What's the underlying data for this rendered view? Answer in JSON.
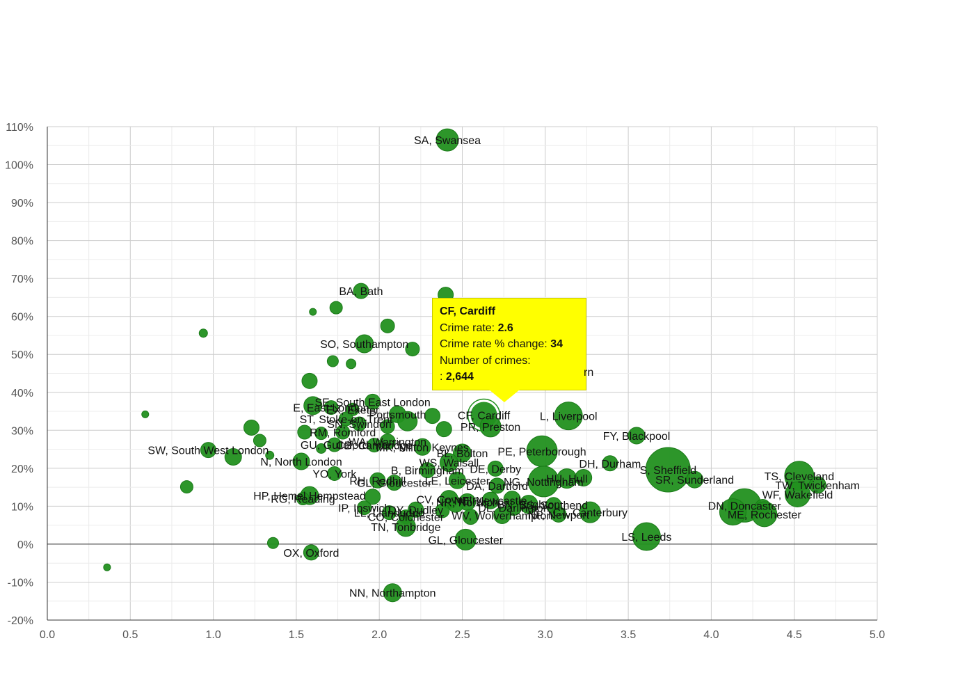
{
  "chart_data": {
    "type": "scatter",
    "subtype": "bubble",
    "title": "",
    "xlabel": "",
    "ylabel": "",
    "xlim": [
      0,
      5
    ],
    "ylim": [
      -20,
      110
    ],
    "x_ticks": [
      "0.0",
      "0.5",
      "1.0",
      "1.5",
      "2.0",
      "2.5",
      "3.0",
      "3.5",
      "4.0",
      "4.5",
      "5.0"
    ],
    "y_ticks": [
      "-20%",
      "-10%",
      "0%",
      "10%",
      "20%",
      "30%",
      "40%",
      "50%",
      "60%",
      "70%",
      "80%",
      "90%",
      "100%",
      "110%"
    ],
    "grid": true,
    "legend": "none",
    "colors": {
      "bubble": "#22901f",
      "bubble_edge": "#1a7a18",
      "tooltip_bg": "#ffff00"
    },
    "points": [
      {
        "x": 2.41,
        "y": 106.5,
        "size": 16,
        "label": "SA, Swansea"
      },
      {
        "x": 1.89,
        "y": 66.7,
        "size": 11,
        "label": "BA, Bath"
      },
      {
        "x": 2.4,
        "y": 65.7,
        "size": 11,
        "label": ""
      },
      {
        "x": 1.6,
        "y": 61.2,
        "size": 5,
        "label": ""
      },
      {
        "x": 1.74,
        "y": 62.3,
        "size": 9,
        "label": ""
      },
      {
        "x": 2.05,
        "y": 57.5,
        "size": 10,
        "label": ""
      },
      {
        "x": 0.94,
        "y": 55.6,
        "size": 6,
        "label": ""
      },
      {
        "x": 1.91,
        "y": 52.8,
        "size": 13,
        "label": "SO, Southampton"
      },
      {
        "x": 2.2,
        "y": 51.4,
        "size": 10,
        "label": ""
      },
      {
        "x": 1.72,
        "y": 48.2,
        "size": 8,
        "label": ""
      },
      {
        "x": 1.83,
        "y": 47.5,
        "size": 7,
        "label": ""
      },
      {
        "x": 1.58,
        "y": 43.0,
        "size": 11,
        "label": ""
      },
      {
        "x": 1.96,
        "y": 37.5,
        "size": 11,
        "label": "SE, South East London"
      },
      {
        "x": 1.6,
        "y": 36.5,
        "size": 13,
        "label": ""
      },
      {
        "x": 1.71,
        "y": 36.0,
        "size": 10,
        "label": "E, East London"
      },
      {
        "x": 1.84,
        "y": 35.5,
        "size": 9,
        "label": "EX, Exeter"
      },
      {
        "x": 2.11,
        "y": 34.2,
        "size": 12,
        "label": "Portsmouth"
      },
      {
        "x": 0.59,
        "y": 34.2,
        "size": 5,
        "label": ""
      },
      {
        "x": 2.32,
        "y": 33.8,
        "size": 11,
        "label": ""
      },
      {
        "x": 1.8,
        "y": 33.0,
        "size": 10,
        "label": "ST, Stoke-on-Trent"
      },
      {
        "x": 2.17,
        "y": 32.4,
        "size": 14,
        "label": ""
      },
      {
        "x": 2.63,
        "y": 34.0,
        "size": 20,
        "label": "CF, Cardiff",
        "highlight": true
      },
      {
        "x": 3.14,
        "y": 33.8,
        "size": 20,
        "label": "L, Liverpool"
      },
      {
        "x": 1.88,
        "y": 31.7,
        "size": 10,
        "label": "SN, Swindon"
      },
      {
        "x": 2.67,
        "y": 31.0,
        "size": 15,
        "label": "PR, Preston"
      },
      {
        "x": 2.05,
        "y": 31.0,
        "size": 10,
        "label": ""
      },
      {
        "x": 1.23,
        "y": 30.7,
        "size": 11,
        "label": ""
      },
      {
        "x": 2.39,
        "y": 30.3,
        "size": 11,
        "label": ""
      },
      {
        "x": 1.78,
        "y": 29.5,
        "size": 10,
        "label": "RM, Romford"
      },
      {
        "x": 1.55,
        "y": 29.5,
        "size": 10,
        "label": ""
      },
      {
        "x": 1.65,
        "y": 29.2,
        "size": 9,
        "label": ""
      },
      {
        "x": 3.55,
        "y": 28.6,
        "size": 12,
        "label": "FY, Blackpool"
      },
      {
        "x": 1.28,
        "y": 27.3,
        "size": 9,
        "label": ""
      },
      {
        "x": 2.05,
        "y": 27.0,
        "size": 11,
        "label": "WA, Warrington"
      },
      {
        "x": 1.73,
        "y": 26.2,
        "size": 10,
        "label": "GU, Guildford"
      },
      {
        "x": 1.97,
        "y": 26.1,
        "size": 10,
        "label": "CB, Cambridge"
      },
      {
        "x": 2.26,
        "y": 25.6,
        "size": 12,
        "label": "MK, Milton Keynes"
      },
      {
        "x": 1.65,
        "y": 25.2,
        "size": 7,
        "label": ""
      },
      {
        "x": 2.98,
        "y": 24.5,
        "size": 22,
        "label": "PE, Peterborough"
      },
      {
        "x": 0.97,
        "y": 24.8,
        "size": 11,
        "label": "SW, South West London"
      },
      {
        "x": 2.5,
        "y": 24.0,
        "size": 13,
        "label": "BL, Bolton"
      },
      {
        "x": 1.12,
        "y": 23.0,
        "size": 12,
        "label": ""
      },
      {
        "x": 1.34,
        "y": 23.4,
        "size": 6,
        "label": ""
      },
      {
        "x": 2.42,
        "y": 21.5,
        "size": 13,
        "label": "WS, Walsall"
      },
      {
        "x": 1.53,
        "y": 21.8,
        "size": 12,
        "label": "N, North London"
      },
      {
        "x": 3.39,
        "y": 21.3,
        "size": 11,
        "label": "DH, Durham"
      },
      {
        "x": 2.7,
        "y": 19.9,
        "size": 11,
        "label": "DE, Derby"
      },
      {
        "x": 2.29,
        "y": 19.5,
        "size": 11,
        "label": "B, Birmingham"
      },
      {
        "x": 1.73,
        "y": 18.6,
        "size": 10,
        "label": "YO, York"
      },
      {
        "x": 3.74,
        "y": 19.6,
        "size": 32,
        "label": "S, Sheffield"
      },
      {
        "x": 4.53,
        "y": 18.0,
        "size": 21,
        "label": "TS, Cleveland"
      },
      {
        "x": 3.23,
        "y": 17.5,
        "size": 12,
        "label": ""
      },
      {
        "x": 3.13,
        "y": 17.3,
        "size": 14,
        "label": "HU, Hull"
      },
      {
        "x": 2.47,
        "y": 16.8,
        "size": 12,
        "label": "LE, Leicester"
      },
      {
        "x": 2.99,
        "y": 16.5,
        "size": 22,
        "label": "NG, Nottingham"
      },
      {
        "x": 3.9,
        "y": 17.0,
        "size": 12,
        "label": "SR, Sunderland"
      },
      {
        "x": 1.99,
        "y": 16.8,
        "size": 11,
        "label": "RH, Redhill"
      },
      {
        "x": 2.09,
        "y": 16.2,
        "size": 11,
        "label": "GL, Gloucester"
      },
      {
        "x": 4.64,
        "y": 15.6,
        "size": 12,
        "label": "TW, Twickenham"
      },
      {
        "x": 2.71,
        "y": 15.4,
        "size": 11,
        "label": "DA, Dartford"
      },
      {
        "x": 0.84,
        "y": 15.1,
        "size": 9,
        "label": ""
      },
      {
        "x": 4.52,
        "y": 13.1,
        "size": 18,
        "label": "WF, Wakefield"
      },
      {
        "x": 1.58,
        "y": 12.8,
        "size": 13,
        "label": "HP, Hemel Hempstead"
      },
      {
        "x": 1.54,
        "y": 12.0,
        "size": 9,
        "label": "RG, Reading"
      },
      {
        "x": 1.96,
        "y": 12.5,
        "size": 11,
        "label": ""
      },
      {
        "x": 2.42,
        "y": 11.8,
        "size": 13,
        "label": "CV, Coventry"
      },
      {
        "x": 2.67,
        "y": 11.5,
        "size": 12,
        "label": "NE, Newcastle"
      },
      {
        "x": 2.8,
        "y": 11.8,
        "size": 12,
        "label": ""
      },
      {
        "x": 2.53,
        "y": 11.1,
        "size": 12,
        "label": "NR, Norwich"
      },
      {
        "x": 2.46,
        "y": 10.4,
        "size": 11,
        "label": ""
      },
      {
        "x": 2.9,
        "y": 10.5,
        "size": 13,
        "label": "BN, Brighton"
      },
      {
        "x": 4.2,
        "y": 10.2,
        "size": 24,
        "label": "DN, Doncaster"
      },
      {
        "x": 3.05,
        "y": 10.3,
        "size": 11,
        "label": "SS, Southend"
      },
      {
        "x": 4.31,
        "y": 9.8,
        "size": 11,
        "label": ""
      },
      {
        "x": 2.81,
        "y": 9.6,
        "size": 11,
        "label": "DL, Darlington"
      },
      {
        "x": 1.91,
        "y": 9.6,
        "size": 10,
        "label": "IP, Ipswich"
      },
      {
        "x": 2.22,
        "y": 9.1,
        "size": 11,
        "label": "DY, Dudley"
      },
      {
        "x": 2.38,
        "y": 8.8,
        "size": 10,
        "label": ""
      },
      {
        "x": 4.13,
        "y": 8.5,
        "size": 19,
        "label": ""
      },
      {
        "x": 3.27,
        "y": 8.4,
        "size": 15,
        "label": "CT, Canterbury"
      },
      {
        "x": 2.06,
        "y": 8.3,
        "size": 10,
        "label": "LL, Llandudno"
      },
      {
        "x": 4.32,
        "y": 7.9,
        "size": 18,
        "label": "ME, Rochester"
      },
      {
        "x": 3.08,
        "y": 7.8,
        "size": 11,
        "label": "NP, Newport"
      },
      {
        "x": 2.74,
        "y": 7.6,
        "size": 12,
        "label": "WV, Wolverhampton"
      },
      {
        "x": 2.16,
        "y": 7.2,
        "size": 10,
        "label": "CO, Colchester"
      },
      {
        "x": 2.55,
        "y": 7.2,
        "size": 11,
        "label": ""
      },
      {
        "x": 2.16,
        "y": 4.6,
        "size": 14,
        "label": "TN, Tonbridge"
      },
      {
        "x": 3.61,
        "y": 2.0,
        "size": 20,
        "label": "LS, Leeds"
      },
      {
        "x": 2.52,
        "y": 1.2,
        "size": 15,
        "label": "GL, Gloucester"
      },
      {
        "x": 1.36,
        "y": 0.3,
        "size": 8,
        "label": ""
      },
      {
        "x": 1.59,
        "y": -2.2,
        "size": 11,
        "label": "OX, Oxford"
      },
      {
        "x": 0.36,
        "y": -6.1,
        "size": 5,
        "label": ""
      },
      {
        "x": 2.08,
        "y": -12.8,
        "size": 13,
        "label": "NN, Northampton"
      }
    ],
    "tooltip": {
      "title": "CF, Cardiff",
      "rate_label": "Crime rate:",
      "rate_value": "2.6",
      "change_label": "Crime rate % change:",
      "change_value": "34",
      "count_label": "Number of crimes:",
      "count_value": "2,644",
      "count_prefix": ":",
      "occluded_label_fragment": "rn"
    }
  }
}
